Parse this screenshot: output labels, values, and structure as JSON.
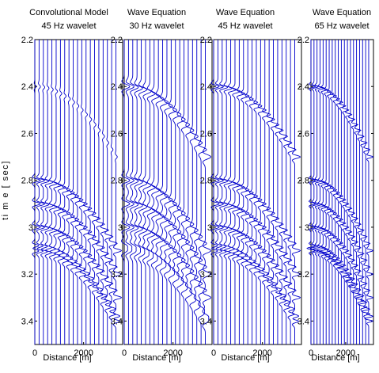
{
  "figure": {
    "ylabel": "ti m e  [ sec]"
  },
  "chart_data": [
    {
      "type": "line",
      "title": [
        "Convolutional Model",
        "45 Hz wavelet"
      ],
      "xlabel": "Distance [m]",
      "xlim": [
        0,
        3600
      ],
      "ylim": [
        2.2,
        3.5
      ],
      "y_reversed": true,
      "xticks": [
        0,
        2000
      ],
      "xtick_labels": [
        "0",
        "2000"
      ],
      "yticks": [
        2.2,
        2.4,
        2.6,
        2.8,
        3.0,
        3.2,
        3.4
      ],
      "ytick_labels": [
        "2.2",
        "2.4",
        "2.6",
        "2.8",
        "3",
        "3.2",
        "3.4"
      ],
      "trace_count": 20,
      "trace_spacing_m": 175,
      "wavelet_hz": 45,
      "series_color": "#0000cc",
      "reflectors_t0": [
        2.4,
        2.8,
        2.9,
        3.0,
        3.08,
        3.1
      ],
      "reflectors_amplitude": [
        0.25,
        1.0,
        1.0,
        1.0,
        1.0,
        1.0
      ],
      "moveout_end_shift_sec": 0.3
    },
    {
      "type": "line",
      "title": [
        "Wave Equation",
        "30 Hz wavelet"
      ],
      "xlabel": "Distance [m]",
      "xlim": [
        0,
        3600
      ],
      "ylim": [
        2.2,
        3.5
      ],
      "y_reversed": true,
      "xticks": [
        0,
        2000
      ],
      "xtick_labels": [
        "0",
        "2000"
      ],
      "yticks": [
        2.2,
        2.4,
        2.6,
        2.8,
        3.0,
        3.2,
        3.4
      ],
      "ytick_labels": [
        "2.2",
        "2.4",
        "2.6",
        "2.8",
        "3",
        "3.2",
        "3.4"
      ],
      "trace_count": 20,
      "trace_spacing_m": 175,
      "wavelet_hz": 30,
      "series_color": "#0000cc",
      "reflectors_t0": [
        2.4,
        2.8,
        2.9,
        3.0,
        3.08,
        3.1
      ],
      "reflectors_amplitude": [
        1.0,
        1.0,
        1.0,
        1.0,
        1.0,
        1.0
      ],
      "moveout_end_shift_sec": 0.3
    },
    {
      "type": "line",
      "title": [
        "Wave Equation",
        "45 Hz wavelet"
      ],
      "xlabel": "Distance [m]",
      "xlim": [
        0,
        3600
      ],
      "ylim": [
        2.2,
        3.5
      ],
      "y_reversed": true,
      "xticks": [
        0,
        2000
      ],
      "xtick_labels": [
        "0",
        "2000"
      ],
      "yticks": [
        2.2,
        2.4,
        2.6,
        2.8,
        3.0,
        3.2,
        3.4
      ],
      "ytick_labels": [
        "2.2",
        "2.4",
        "2.6",
        "2.8",
        "3",
        "3.2",
        "3.4"
      ],
      "trace_count": 20,
      "trace_spacing_m": 175,
      "wavelet_hz": 45,
      "series_color": "#0000cc",
      "reflectors_t0": [
        2.4,
        2.8,
        2.9,
        3.0,
        3.08,
        3.1
      ],
      "reflectors_amplitude": [
        1.0,
        1.0,
        1.0,
        1.0,
        1.0,
        1.0
      ],
      "moveout_end_shift_sec": 0.3
    },
    {
      "type": "line",
      "title": [
        "Wave Equation",
        "65 Hz wavelet"
      ],
      "xlabel": "Distance [m]",
      "xlim": [
        0,
        3600
      ],
      "ylim": [
        2.2,
        3.5
      ],
      "y_reversed": true,
      "xticks": [
        0,
        2000
      ],
      "xtick_labels": [
        "0",
        "2000"
      ],
      "yticks": [
        2.2,
        2.4,
        2.6,
        2.8,
        3.0,
        3.2,
        3.4
      ],
      "ytick_labels": [
        "2.2",
        "2.4",
        "2.6",
        "2.8",
        "3",
        "3.2",
        "3.4"
      ],
      "trace_count": 20,
      "trace_spacing_m": 175,
      "wavelet_hz": 65,
      "series_color": "#0000cc",
      "reflectors_t0": [
        2.4,
        2.8,
        2.9,
        3.0,
        3.08,
        3.1
      ],
      "reflectors_amplitude": [
        1.0,
        1.0,
        1.0,
        1.0,
        1.0,
        1.0
      ],
      "moveout_end_shift_sec": 0.3
    }
  ]
}
